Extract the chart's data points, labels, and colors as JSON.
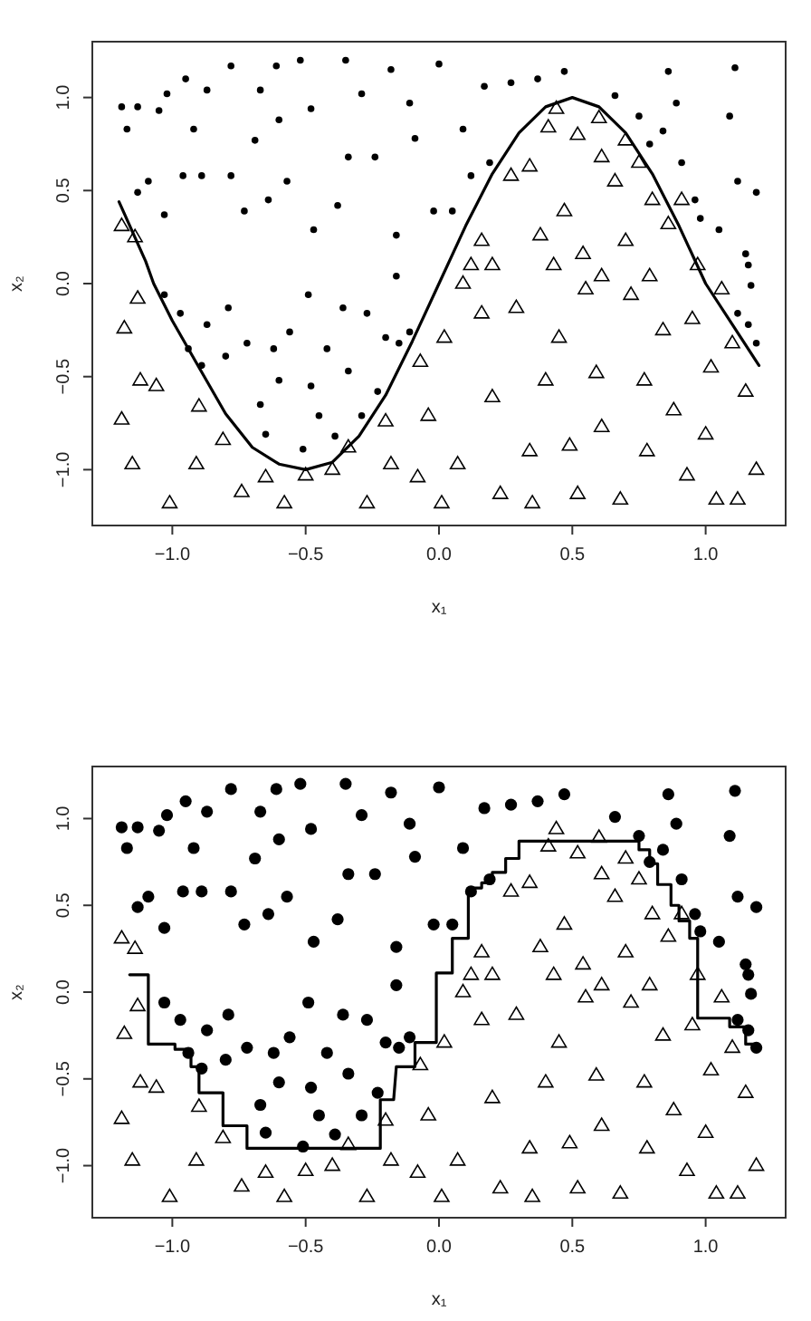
{
  "chart_data": [
    {
      "type": "scatter",
      "xlabel": "x₁",
      "ylabel": "x₂",
      "xlim": [
        -1.3,
        1.3
      ],
      "ylim": [
        -1.3,
        1.3
      ],
      "xticks": [
        {
          "value": -1,
          "label": "−1.0"
        },
        {
          "value": -0.5,
          "label": "−0.5"
        },
        {
          "value": 0,
          "label": "0.0"
        },
        {
          "value": 0.5,
          "label": "0.5"
        },
        {
          "value": 1,
          "label": "1.0"
        }
      ],
      "yticks": [
        {
          "value": -1,
          "label": "−1.0"
        },
        {
          "value": -0.5,
          "label": "−0.5"
        },
        {
          "value": 0,
          "label": "0.0"
        },
        {
          "value": 0.5,
          "label": "0.5"
        },
        {
          "value": 1,
          "label": "1.0"
        }
      ],
      "grid": false,
      "series": [
        {
          "marker": "circle",
          "color": "#000000",
          "x": [
            -1.19,
            -1.17,
            -1.13,
            -1.13,
            -1.05,
            -1.02,
            -1.03,
            -1.09,
            -0.95,
            -0.96,
            -0.92,
            -0.87,
            -0.89,
            -0.78,
            -0.78,
            -0.73,
            -0.69,
            -0.67,
            -0.64,
            -0.61,
            -0.6,
            -0.57,
            -0.52,
            -0.48,
            -0.47,
            -0.38,
            -0.35,
            -0.34,
            -0.29,
            -0.24,
            -0.18,
            -0.16,
            -0.11,
            -0.09,
            -0.02,
            0,
            0.05,
            0.09,
            0.12,
            0.17,
            0.19,
            0.27,
            0.37,
            0.47,
            0.66,
            0.75,
            0.84,
            0.86,
            0.89,
            0.91,
            0.96,
            0.98,
            1.09,
            1.11,
            1.12,
            1.15,
            1.19,
            1.16,
            0.79,
            1.05,
            -1.03,
            -0.97,
            -0.94,
            -0.89,
            -0.87,
            -0.8,
            -0.79,
            -0.72,
            -0.67,
            -0.65,
            -0.62,
            -0.6,
            -0.56,
            -0.51,
            -0.49,
            -0.48,
            -0.45,
            -0.42,
            -0.39,
            -0.36,
            -0.34,
            -0.29,
            -0.27,
            -0.23,
            -0.2,
            -0.15,
            -0.11,
            -0.16,
            1.12,
            1.16,
            1.19,
            1.17
          ],
          "values": [
            0.95,
            0.83,
            0.95,
            0.49,
            0.93,
            1.02,
            0.37,
            0.55,
            1.1,
            0.58,
            0.83,
            1.04,
            0.58,
            1.17,
            0.58,
            0.39,
            0.77,
            1.04,
            0.45,
            1.17,
            0.88,
            0.55,
            1.2,
            0.94,
            0.29,
            0.42,
            1.2,
            0.68,
            1.02,
            0.68,
            1.15,
            0.26,
            0.97,
            0.78,
            0.39,
            1.18,
            0.39,
            0.83,
            0.58,
            1.06,
            0.65,
            1.08,
            1.1,
            1.14,
            1.01,
            0.9,
            0.82,
            1.14,
            0.97,
            0.65,
            0.45,
            0.35,
            0.9,
            1.16,
            0.55,
            0.16,
            0.49,
            0.1,
            0.75,
            0.29,
            -0.06,
            -0.16,
            -0.35,
            -0.44,
            -0.22,
            -0.39,
            -0.13,
            -0.32,
            -0.65,
            -0.81,
            -0.35,
            -0.52,
            -0.26,
            -0.89,
            -0.06,
            -0.55,
            -0.71,
            -0.35,
            -0.82,
            -0.13,
            -0.47,
            -0.71,
            -0.16,
            -0.58,
            -0.29,
            -0.32,
            -0.26,
            0.04,
            -0.16,
            -0.22,
            -0.32,
            -0.01
          ]
        },
        {
          "marker": "triangle",
          "color": "#000000",
          "x": [
            0.44,
            0.41,
            0.34,
            0.27,
            0.6,
            0.61,
            0.66,
            0.7,
            0.75,
            0.8,
            0.86,
            0.91,
            0.97,
            0.52,
            0.47,
            0.38,
            0.43,
            0.54,
            0.61,
            0.2,
            0.16,
            0.12,
            0.7,
            0.79,
            -1.19,
            -1.14,
            -1.13,
            -1.18,
            -1.12,
            -1.19,
            -1.15,
            -1.01,
            -1.06,
            -0.9,
            -0.91,
            -0.81,
            -0.74,
            -0.65,
            -0.58,
            -0.5,
            -0.4,
            -0.34,
            -0.27,
            -0.18,
            -0.2,
            -0.08,
            -0.04,
            -0.07,
            0.02,
            0.01,
            0.07,
            0.09,
            0.16,
            0.2,
            0.23,
            0.29,
            0.34,
            0.35,
            0.4,
            0.45,
            0.49,
            0.52,
            0.55,
            0.59,
            0.61,
            0.68,
            0.72,
            0.77,
            0.78,
            0.84,
            0.88,
            0.93,
            0.95,
            1,
            1.02,
            1.06,
            1.1,
            1.12,
            1.15,
            1.19,
            1.04
          ],
          "values": [
            0.94,
            0.84,
            0.63,
            0.58,
            0.89,
            0.68,
            0.55,
            0.77,
            0.65,
            0.45,
            0.32,
            0.45,
            0.1,
            0.8,
            0.39,
            0.26,
            0.1,
            0.16,
            0.04,
            0.1,
            0.23,
            0.1,
            0.23,
            0.04,
            0.31,
            0.25,
            -0.08,
            -0.24,
            -0.52,
            -0.73,
            -0.97,
            -1.18,
            -0.55,
            -0.66,
            -0.97,
            -0.84,
            -1.12,
            -1.04,
            -1.18,
            -1.03,
            -1,
            -0.88,
            -1.18,
            -0.97,
            -0.74,
            -1.04,
            -0.71,
            -0.42,
            -0.29,
            -1.18,
            -0.97,
            0,
            -0.16,
            -0.61,
            -1.13,
            -0.13,
            -0.9,
            -1.18,
            -0.52,
            -0.29,
            -0.87,
            -1.13,
            -0.03,
            -0.48,
            -0.77,
            -1.16,
            -0.06,
            -0.52,
            -0.9,
            -0.25,
            -0.68,
            -1.03,
            -0.19,
            -0.81,
            -0.45,
            -0.03,
            -0.32,
            -1.16,
            -0.58,
            -1,
            -1.16
          ]
        },
        {
          "type": "line",
          "line_style": "solid",
          "color": "#000000",
          "x": [
            -1.2,
            -1.1,
            -1.07,
            -1,
            -0.9,
            -0.8,
            -0.7,
            -0.6,
            -0.5,
            -0.4,
            -0.3,
            -0.2,
            -0.1,
            0,
            0.1,
            0.2,
            0.3,
            0.4,
            0.5,
            0.6,
            0.7,
            0.8,
            0.9,
            1,
            1.1,
            1.2
          ],
          "values": [
            0.44,
            0.12,
            0,
            -0.2,
            -0.45,
            -0.7,
            -0.88,
            -0.97,
            -1,
            -0.96,
            -0.82,
            -0.6,
            -0.31,
            0,
            0.31,
            0.59,
            0.81,
            0.95,
            1,
            0.95,
            0.81,
            0.59,
            0.31,
            0,
            -0.22,
            -0.44
          ]
        }
      ]
    },
    {
      "type": "scatter",
      "xlabel": "x₁",
      "ylabel": "x₂",
      "xlim": [
        -1.3,
        1.3
      ],
      "ylim": [
        -1.3,
        1.3
      ],
      "xticks": [
        {
          "value": -1,
          "label": "−1.0"
        },
        {
          "value": -0.5,
          "label": "−0.5"
        },
        {
          "value": 0,
          "label": "0.0"
        },
        {
          "value": 0.5,
          "label": "0.5"
        },
        {
          "value": 1,
          "label": "1.0"
        }
      ],
      "yticks": [
        {
          "value": -1,
          "label": "−1.0"
        },
        {
          "value": -0.5,
          "label": "−0.5"
        },
        {
          "value": 0,
          "label": "0.0"
        },
        {
          "value": 0.5,
          "label": "0.5"
        },
        {
          "value": 1,
          "label": "1.0"
        }
      ],
      "grid": false,
      "series": [
        {
          "marker": "circle",
          "color": "#000000",
          "x": [
            -1.19,
            -1.17,
            -1.13,
            -1.13,
            -1.05,
            -1.02,
            -1.03,
            -1.09,
            -0.95,
            -0.96,
            -0.92,
            -0.87,
            -0.89,
            -0.78,
            -0.78,
            -0.73,
            -0.69,
            -0.67,
            -0.64,
            -0.61,
            -0.6,
            -0.57,
            -0.52,
            -0.48,
            -0.47,
            -0.38,
            -0.35,
            -0.34,
            -0.29,
            -0.24,
            -0.18,
            -0.16,
            -0.11,
            -0.09,
            -0.02,
            0,
            0.05,
            0.09,
            0.12,
            0.17,
            0.19,
            0.27,
            0.37,
            0.47,
            0.66,
            0.75,
            0.84,
            0.86,
            0.89,
            0.91,
            0.96,
            0.98,
            1.09,
            1.11,
            1.12,
            1.15,
            1.19,
            1.16,
            0.79,
            1.05,
            -1.03,
            -0.97,
            -0.94,
            -0.89,
            -0.87,
            -0.8,
            -0.79,
            -0.72,
            -0.67,
            -0.65,
            -0.62,
            -0.6,
            -0.56,
            -0.51,
            -0.49,
            -0.48,
            -0.45,
            -0.42,
            -0.39,
            -0.36,
            -0.34,
            -0.29,
            -0.27,
            -0.23,
            -0.2,
            -0.15,
            -0.11,
            -0.16,
            1.12,
            1.16,
            1.19,
            1.17
          ],
          "values": [
            0.95,
            0.83,
            0.95,
            0.49,
            0.93,
            1.02,
            0.37,
            0.55,
            1.1,
            0.58,
            0.83,
            1.04,
            0.58,
            1.17,
            0.58,
            0.39,
            0.77,
            1.04,
            0.45,
            1.17,
            0.88,
            0.55,
            1.2,
            0.94,
            0.29,
            0.42,
            1.2,
            0.68,
            1.02,
            0.68,
            1.15,
            0.26,
            0.97,
            0.78,
            0.39,
            1.18,
            0.39,
            0.83,
            0.58,
            1.06,
            0.65,
            1.08,
            1.1,
            1.14,
            1.01,
            0.9,
            0.82,
            1.14,
            0.97,
            0.65,
            0.45,
            0.35,
            0.9,
            1.16,
            0.55,
            0.16,
            0.49,
            0.1,
            0.75,
            0.29,
            -0.06,
            -0.16,
            -0.35,
            -0.44,
            -0.22,
            -0.39,
            -0.13,
            -0.32,
            -0.65,
            -0.81,
            -0.35,
            -0.52,
            -0.26,
            -0.89,
            -0.06,
            -0.55,
            -0.71,
            -0.35,
            -0.82,
            -0.13,
            -0.47,
            -0.71,
            -0.16,
            -0.58,
            -0.29,
            -0.32,
            -0.26,
            0.04,
            -0.16,
            -0.22,
            -0.32,
            -0.01
          ]
        },
        {
          "marker": "triangle",
          "color": "#000000",
          "x": [
            0.44,
            0.41,
            0.34,
            0.27,
            0.6,
            0.61,
            0.66,
            0.7,
            0.75,
            0.8,
            0.86,
            0.91,
            0.97,
            0.52,
            0.47,
            0.38,
            0.43,
            0.54,
            0.61,
            0.2,
            0.16,
            0.12,
            0.7,
            0.79,
            -1.19,
            -1.14,
            -1.13,
            -1.18,
            -1.12,
            -1.19,
            -1.15,
            -1.01,
            -1.06,
            -0.9,
            -0.91,
            -0.81,
            -0.74,
            -0.65,
            -0.58,
            -0.5,
            -0.4,
            -0.34,
            -0.27,
            -0.18,
            -0.2,
            -0.08,
            -0.04,
            -0.07,
            0.02,
            0.01,
            0.07,
            0.09,
            0.16,
            0.2,
            0.23,
            0.29,
            0.34,
            0.35,
            0.4,
            0.45,
            0.49,
            0.52,
            0.55,
            0.59,
            0.61,
            0.68,
            0.72,
            0.77,
            0.78,
            0.84,
            0.88,
            0.93,
            0.95,
            1,
            1.02,
            1.06,
            1.1,
            1.12,
            1.15,
            1.19,
            1.04
          ],
          "values": [
            0.94,
            0.84,
            0.63,
            0.58,
            0.89,
            0.68,
            0.55,
            0.77,
            0.65,
            0.45,
            0.32,
            0.45,
            0.1,
            0.8,
            0.39,
            0.26,
            0.1,
            0.16,
            0.04,
            0.1,
            0.23,
            0.1,
            0.23,
            0.04,
            0.31,
            0.25,
            -0.08,
            -0.24,
            -0.52,
            -0.73,
            -0.97,
            -1.18,
            -0.55,
            -0.66,
            -0.97,
            -0.84,
            -1.12,
            -1.04,
            -1.18,
            -1.03,
            -1,
            -0.88,
            -1.18,
            -0.97,
            -0.74,
            -1.04,
            -0.71,
            -0.42,
            -0.29,
            -1.18,
            -0.97,
            0,
            -0.16,
            -0.61,
            -1.13,
            -0.13,
            -0.9,
            -1.18,
            -0.52,
            -0.29,
            -0.87,
            -1.13,
            -0.03,
            -0.48,
            -0.77,
            -1.16,
            -0.06,
            -0.52,
            -0.9,
            -0.25,
            -0.68,
            -1.03,
            -0.19,
            -0.81,
            -0.45,
            -0.03,
            -0.32,
            -1.16,
            -0.58,
            -1,
            -1.16
          ]
        },
        {
          "type": "line",
          "line_style": "solid",
          "color": "#000000",
          "x": [
            -1.16,
            -1.09,
            -1.09,
            -0.99,
            -0.99,
            -0.93,
            -0.93,
            -0.9,
            -0.9,
            -0.81,
            -0.81,
            -0.72,
            -0.72,
            -0.22,
            -0.22,
            -0.17,
            -0.16,
            -0.09,
            -0.09,
            -0.01,
            -0.01,
            0.05,
            0.05,
            0.11,
            0.11,
            0.16,
            0.16,
            0.2,
            0.2,
            0.25,
            0.25,
            0.3,
            0.3,
            0.75,
            0.75,
            0.79,
            0.79,
            0.82,
            0.82,
            0.87,
            0.87,
            0.9,
            0.9,
            0.94,
            0.94,
            0.97,
            0.97,
            1.09,
            1.09,
            1.15,
            1.15,
            1.18
          ],
          "values": [
            0.1,
            0.1,
            -0.3,
            -0.3,
            -0.33,
            -0.33,
            -0.43,
            -0.43,
            -0.58,
            -0.58,
            -0.77,
            -0.77,
            -0.9,
            -0.9,
            -0.62,
            -0.62,
            -0.43,
            -0.43,
            -0.29,
            -0.29,
            0.11,
            0.11,
            0.31,
            0.31,
            0.6,
            0.6,
            0.63,
            0.63,
            0.69,
            0.69,
            0.77,
            0.77,
            0.87,
            0.87,
            0.82,
            0.82,
            0.74,
            0.74,
            0.62,
            0.62,
            0.5,
            0.5,
            0.41,
            0.41,
            0.31,
            0.31,
            -0.15,
            -0.15,
            -0.2,
            -0.2,
            -0.3,
            -0.3
          ]
        }
      ]
    }
  ]
}
